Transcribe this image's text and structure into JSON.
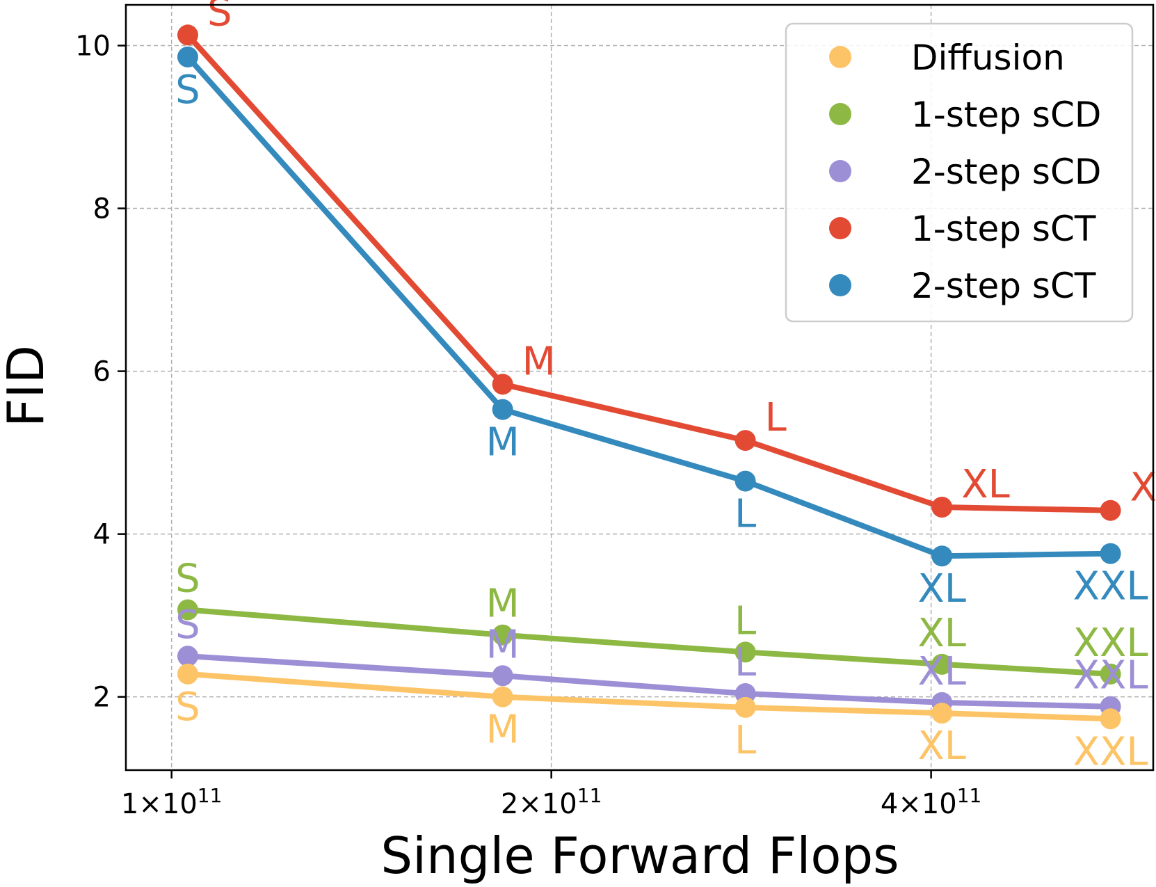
{
  "chart_data": {
    "type": "line",
    "title": "",
    "xlabel": "Single Forward Flops",
    "ylabel": "FID",
    "xscale": "log",
    "xlim": [
      92000000000.0,
      600000000000.0
    ],
    "ylim": [
      1.1,
      10.5
    ],
    "grid": true,
    "legend_position": "top-right",
    "x_ticks": [
      {
        "value": 100000000000.0,
        "mantissa": "1",
        "times": "×",
        "base": "10",
        "exponent": "11"
      },
      {
        "value": 200000000000.0,
        "mantissa": "2",
        "times": "×",
        "base": "10",
        "exponent": "11"
      },
      {
        "value": 400000000000.0,
        "mantissa": "4",
        "times": "×",
        "base": "10",
        "exponent": "11"
      }
    ],
    "y_ticks": [
      {
        "value": 2,
        "label": "2"
      },
      {
        "value": 4,
        "label": "4"
      },
      {
        "value": 6,
        "label": "6"
      },
      {
        "value": 8,
        "label": "8"
      },
      {
        "value": 10,
        "label": "10"
      }
    ],
    "x": [
      103000000000.0,
      183000000000.0,
      285000000000.0,
      408000000000.0,
      555000000000.0
    ],
    "point_labels": [
      "S",
      "M",
      "L",
      "XL",
      "XXL"
    ],
    "series": [
      {
        "name": "Diffusion",
        "color": "#fdc467",
        "values": [
          2.28,
          2.0,
          1.87,
          1.8,
          1.73
        ],
        "label_position": "below"
      },
      {
        "name": "1-step sCD",
        "color": "#8db843",
        "values": [
          3.07,
          2.76,
          2.55,
          2.4,
          2.28
        ],
        "label_position": "above"
      },
      {
        "name": "2-step sCD",
        "color": "#9d8fd6",
        "values": [
          2.5,
          2.26,
          2.04,
          1.93,
          1.88
        ],
        "label_position": "above"
      },
      {
        "name": "1-step sCT",
        "color": "#e24a33",
        "values": [
          10.13,
          5.84,
          5.15,
          4.33,
          4.29
        ],
        "label_position": "above-right"
      },
      {
        "name": "2-step sCT",
        "color": "#348abd",
        "values": [
          9.86,
          5.53,
          4.65,
          3.73,
          3.76
        ],
        "label_position": "below"
      }
    ]
  }
}
